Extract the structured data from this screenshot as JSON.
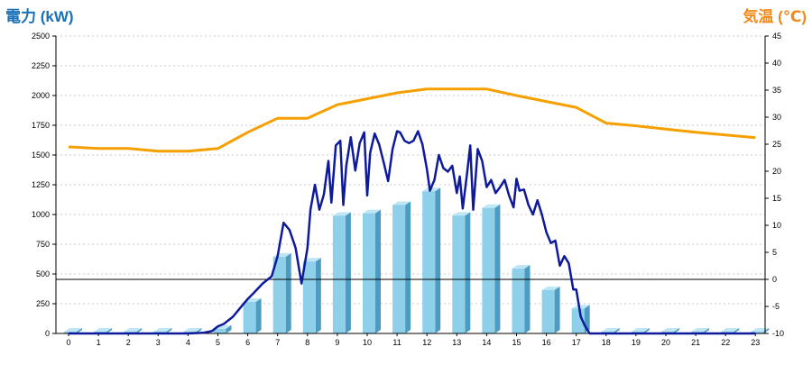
{
  "chart_data": {
    "type": "bar+line",
    "y_left_label": "電力 (kW)",
    "y_right_label": "気温 (℃)",
    "categories": [
      "0",
      "1",
      "2",
      "3",
      "4",
      "5",
      "6",
      "7",
      "8",
      "9",
      "10",
      "11",
      "12",
      "13",
      "14",
      "15",
      "16",
      "17",
      "18",
      "19",
      "20",
      "21",
      "22",
      "23"
    ],
    "left_ticks": [
      "0",
      "250",
      "500",
      "750",
      "1000",
      "1250",
      "1500",
      "1750",
      "2000",
      "2250",
      "2500"
    ],
    "right_ticks": [
      "-10",
      "-5",
      "0",
      "5",
      "10",
      "15",
      "20",
      "25",
      "30",
      "35",
      "40",
      "45"
    ],
    "ylim_left": [
      0,
      2500
    ],
    "ylim_right": [
      -10,
      45
    ],
    "grid": true,
    "colors": {
      "left_title": "#1a6fb5",
      "right_title": "#f08a1c",
      "bar_front": "#8ecfea",
      "bar_side": "#4d9bc0",
      "bar_top": "#bfe6f5",
      "power_line": "#0e1a9a",
      "temp_line": "#f5a000",
      "grid": "#c8c8c8",
      "zero_line": "#000000"
    },
    "series": [
      {
        "name": "電力 (kW) bar",
        "kind": "bar",
        "axis": "left",
        "values": [
          15,
          15,
          15,
          15,
          15,
          40,
          265,
          645,
          605,
          990,
          1010,
          1080,
          1195,
          990,
          1055,
          545,
          365,
          210,
          15,
          15,
          15,
          15,
          15,
          15
        ]
      },
      {
        "name": "気温 (℃)",
        "kind": "line",
        "axis": "right",
        "x": [
          0,
          1,
          2,
          3,
          4,
          5,
          6,
          7,
          8,
          9,
          10,
          11,
          12,
          13,
          14,
          15,
          16,
          17,
          18,
          19,
          20,
          21,
          22,
          23
        ],
        "values": [
          24.5,
          24.2,
          24.2,
          23.7,
          23.7,
          24.2,
          27.2,
          29.8,
          29.8,
          32.3,
          33.4,
          34.5,
          35.2,
          35.2,
          35.2,
          34.0,
          32.9,
          31.8,
          28.9,
          28.4,
          27.8,
          27.2,
          26.7,
          26.2
        ]
      },
      {
        "name": "電力 (kW) line",
        "kind": "line",
        "axis": "left",
        "x": [
          0,
          1,
          2,
          3,
          4,
          4.5,
          4.8,
          5,
          5.2,
          5.5,
          5.8,
          6,
          6.2,
          6.5,
          6.8,
          7,
          7.2,
          7.4,
          7.6,
          7.8,
          8,
          8.1,
          8.25,
          8.4,
          8.55,
          8.7,
          8.8,
          8.95,
          9.1,
          9.2,
          9.3,
          9.45,
          9.6,
          9.75,
          9.9,
          10,
          10.1,
          10.25,
          10.4,
          10.55,
          10.7,
          10.85,
          11,
          11.1,
          11.25,
          11.4,
          11.55,
          11.7,
          11.85,
          12,
          12.1,
          12.25,
          12.4,
          12.55,
          12.7,
          12.85,
          13,
          13.1,
          13.2,
          13.35,
          13.45,
          13.55,
          13.7,
          13.85,
          14,
          14.15,
          14.3,
          14.45,
          14.6,
          14.75,
          14.9,
          15,
          15.1,
          15.25,
          15.4,
          15.55,
          15.7,
          15.85,
          16,
          16.15,
          16.3,
          16.45,
          16.6,
          16.75,
          16.9,
          17,
          17.15,
          17.3,
          17.45,
          17.6,
          18,
          19,
          20,
          21,
          22,
          23
        ],
        "values": [
          0,
          0,
          0,
          0,
          0,
          5,
          20,
          60,
          80,
          140,
          230,
          290,
          340,
          420,
          480,
          650,
          930,
          870,
          720,
          420,
          720,
          1040,
          1250,
          1040,
          1170,
          1450,
          1100,
          1580,
          1620,
          1080,
          1410,
          1650,
          1370,
          1600,
          1690,
          1160,
          1520,
          1680,
          1590,
          1440,
          1280,
          1550,
          1700,
          1690,
          1620,
          1600,
          1620,
          1700,
          1590,
          1380,
          1200,
          1290,
          1500,
          1390,
          1360,
          1410,
          1180,
          1320,
          1050,
          1360,
          1580,
          1040,
          1550,
          1450,
          1230,
          1290,
          1180,
          1230,
          1290,
          1160,
          1060,
          1300,
          1200,
          1210,
          1080,
          1000,
          1120,
          1000,
          850,
          760,
          780,
          570,
          650,
          590,
          370,
          370,
          140,
          60,
          0,
          0,
          0,
          0,
          0,
          0,
          0,
          0
        ]
      }
    ]
  }
}
